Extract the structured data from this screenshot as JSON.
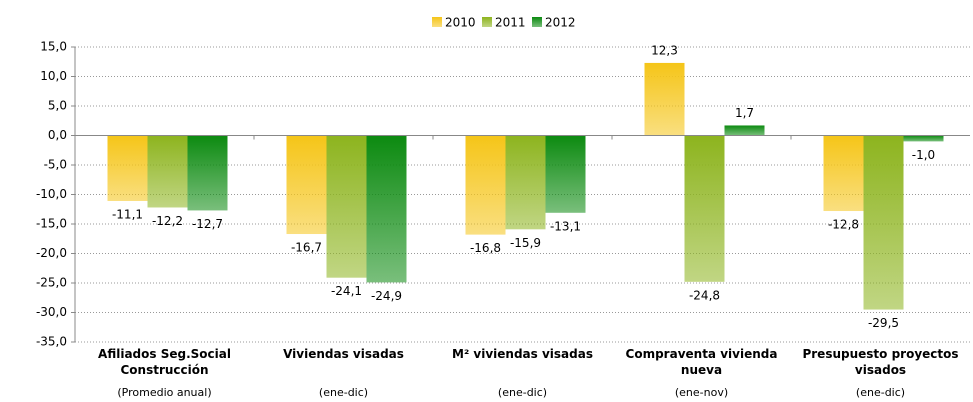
{
  "chart_data": {
    "type": "bar",
    "categories": [
      "Afiliados Seg.Social Construcción",
      "Viviendas visadas",
      "M² viviendas visadas",
      "Compraventa vivienda nueva",
      "Presupuesto proyectos visados"
    ],
    "category_notes": [
      "(Promedio anual)",
      "(ene-dic)",
      "(ene-dic)",
      "(ene-nov)",
      "(ene-dic)"
    ],
    "series": [
      {
        "name": "2010",
        "color": "#f5c518",
        "values": [
          -11.1,
          -16.7,
          -16.8,
          12.3,
          -12.8
        ],
        "value_labels": [
          "-11,1",
          "-16,7",
          "-16,8",
          "12,3",
          "-12,8"
        ]
      },
      {
        "name": "2011",
        "color": "#8db41e",
        "values": [
          -12.2,
          -24.1,
          -15.9,
          -24.8,
          -29.5
        ],
        "value_labels": [
          "-12,2",
          "-24,1",
          "-15,9",
          "-24,8",
          "-29,5"
        ]
      },
      {
        "name": "2012",
        "color": "#0c8a10",
        "values": [
          -12.7,
          -24.9,
          -13.1,
          1.7,
          -1.0
        ],
        "value_labels": [
          "-12,7",
          "-24,9",
          "-13,1",
          "1,7",
          "-1,0"
        ]
      }
    ],
    "ylim": [
      -35,
      15
    ],
    "yticks": [
      {
        "value": -35,
        "label": "-35,0"
      },
      {
        "value": -30,
        "label": "-30,0"
      },
      {
        "value": -25,
        "label": "-25,0"
      },
      {
        "value": -20,
        "label": "-20,0"
      },
      {
        "value": -15,
        "label": "-15,0"
      },
      {
        "value": -10,
        "label": "-10,0"
      },
      {
        "value": -5,
        "label": "-5,0"
      },
      {
        "value": 0,
        "label": "0,0"
      },
      {
        "value": 5,
        "label": "5,0"
      },
      {
        "value": 10,
        "label": "10,0"
      },
      {
        "value": 15,
        "label": "15,0"
      }
    ],
    "grid": true,
    "legend": "top"
  }
}
